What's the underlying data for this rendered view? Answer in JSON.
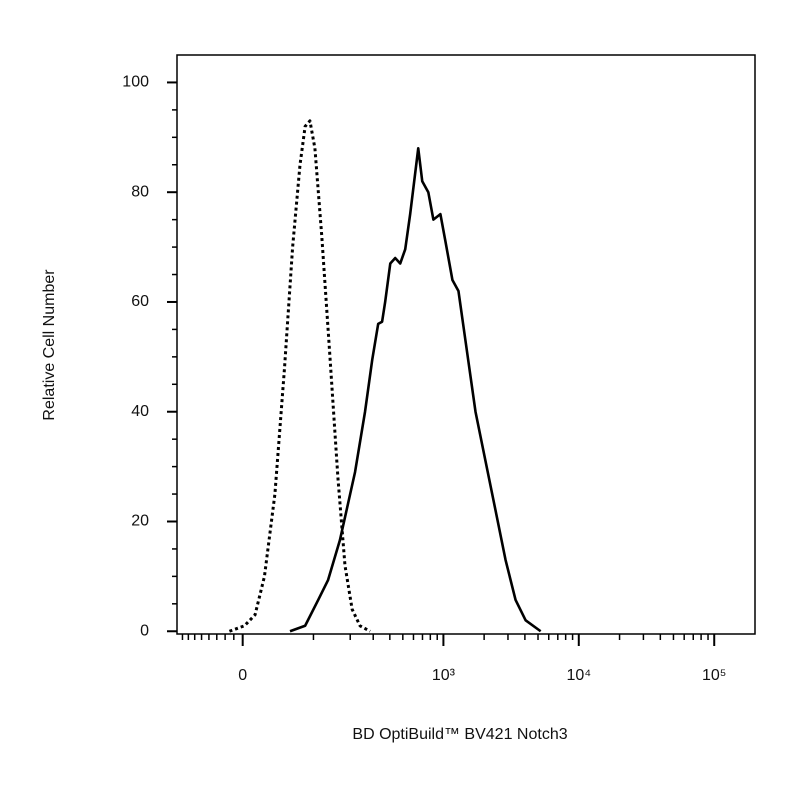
{
  "chart_data": {
    "type": "histogram-line",
    "x_label": "BD OptiBuild™ BV421 Notch3",
    "y_label": "Relative Cell Number",
    "xscale": "biexponential",
    "xlim": [
      -90,
      200000
    ],
    "ylim": [
      -0.5,
      105
    ],
    "xticks": [
      {
        "value": 0,
        "label": "0"
      },
      {
        "value": 1000,
        "label": "10³"
      },
      {
        "value": 10000,
        "label": "10⁴"
      },
      {
        "value": 100000,
        "label": "10⁵"
      }
    ],
    "xminorticks": [
      -80,
      -70,
      -60,
      -50,
      -40,
      -30,
      -20,
      -10,
      100,
      200,
      300,
      400,
      500,
      600,
      700,
      800,
      900,
      2000,
      3000,
      4000,
      5000,
      6000,
      7000,
      8000,
      9000,
      20000,
      30000,
      40000,
      50000,
      60000,
      70000,
      80000,
      90000
    ],
    "yticks": [
      0,
      20,
      40,
      60,
      80,
      100
    ],
    "yminorticks": [
      5,
      10,
      15,
      25,
      30,
      35,
      45,
      50,
      55,
      65,
      70,
      75,
      85,
      90,
      95
    ],
    "series": [
      {
        "color": "#000000",
        "style": "dotted",
        "x": [
          -15,
          2,
          14,
          25,
          38,
          51,
          63,
          75,
          84,
          93,
          103,
          118,
          138,
          160,
          182,
          207,
          238,
          284
        ],
        "values": [
          0,
          1,
          3,
          10,
          25,
          48,
          70,
          85,
          92,
          93,
          88,
          72,
          50,
          28,
          12,
          4,
          1,
          0
        ]
      },
      {
        "color": "#000000",
        "style": "solid",
        "x": [
          59,
          84,
          110,
          133,
          166,
          218,
          260,
          295,
          327,
          350,
          369,
          403,
          439,
          478,
          521,
          567,
          651,
          697,
          773,
          843,
          950,
          1036,
          1166,
          1292,
          1455,
          1727,
          2048,
          2429,
          2879,
          3414,
          4050,
          5230
        ],
        "values": [
          0,
          1,
          5.7,
          9.3,
          16.6,
          29,
          40,
          49.5,
          56,
          56.4,
          60,
          67,
          68,
          67,
          69.6,
          76,
          88,
          82,
          80,
          75,
          76,
          71,
          64,
          62,
          53,
          40,
          31,
          22,
          13,
          5.7,
          2,
          0
        ]
      }
    ]
  }
}
